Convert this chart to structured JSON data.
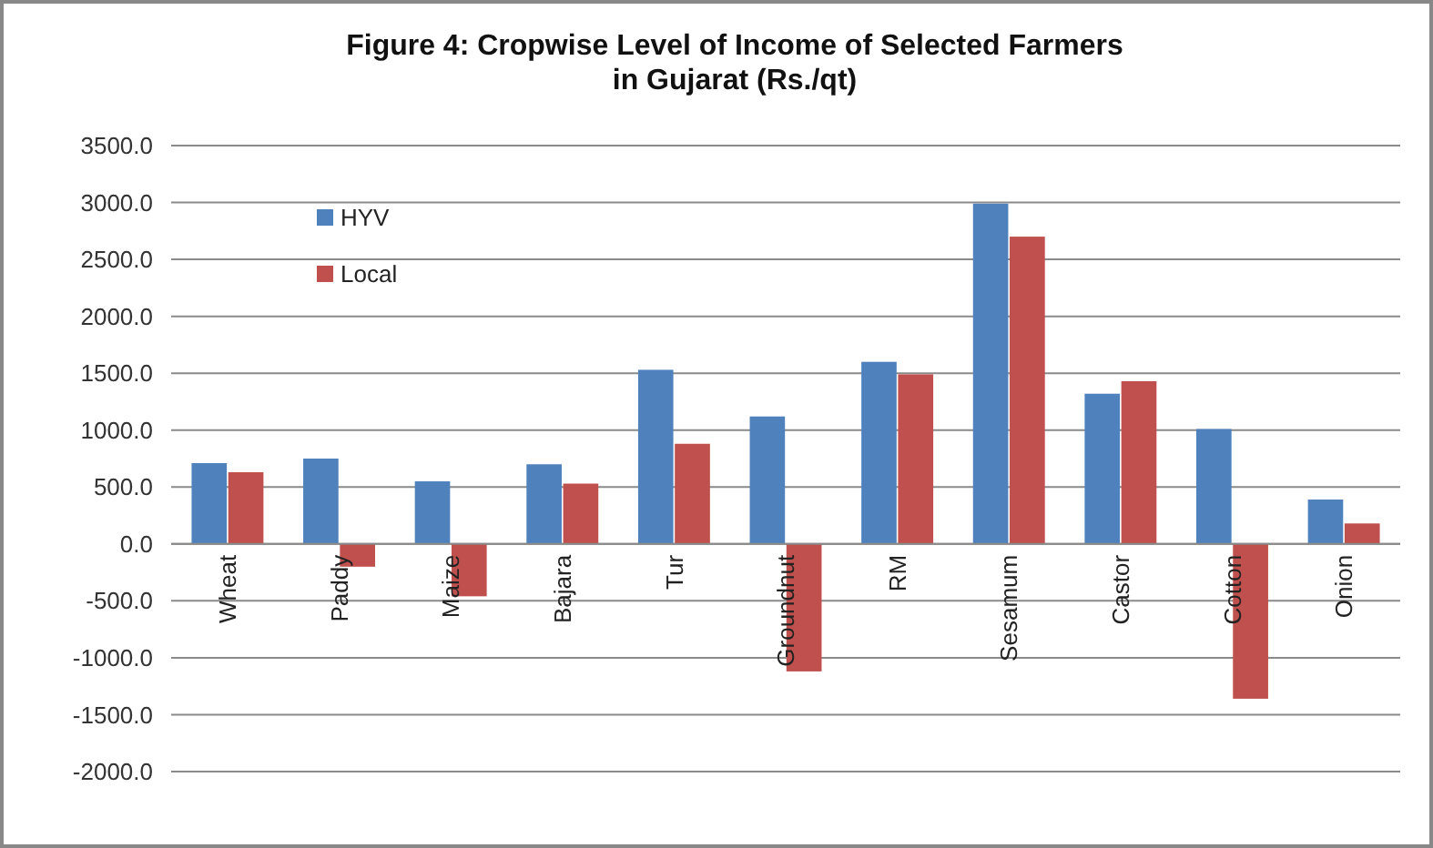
{
  "chart_data": {
    "type": "bar",
    "title": "Figure 4: Cropwise Level of Income of Selected Farmers in Gujarat (Rs./qt)",
    "categories": [
      "Wheat",
      "Paddy",
      "Maize",
      "Bajara",
      "Tur",
      "Groundnut",
      "RM",
      "Sesamum",
      "Castor",
      "Cotton",
      "Onion"
    ],
    "series": [
      {
        "name": "HYV",
        "color": "#4f81bd",
        "values": [
          710,
          750,
          550,
          700,
          1530,
          1120,
          1600,
          2990,
          1320,
          1010,
          390
        ]
      },
      {
        "name": "Local",
        "color": "#c0504d",
        "values": [
          630,
          -200,
          -460,
          530,
          880,
          -1120,
          1490,
          2700,
          1430,
          -1360,
          180
        ]
      }
    ],
    "ylim": [
      -2000,
      3500
    ],
    "yticks": [
      {
        "value": -2000,
        "label": "-2000.0"
      },
      {
        "value": -1500,
        "label": "-1500.0"
      },
      {
        "value": -1000,
        "label": "-1000.0"
      },
      {
        "value": -500,
        "label": "-500.0"
      },
      {
        "value": 0,
        "label": "0.0"
      },
      {
        "value": 500,
        "label": "500.0"
      },
      {
        "value": 1000,
        "label": "1000.0"
      },
      {
        "value": 1500,
        "label": "1500.0"
      },
      {
        "value": 2000,
        "label": "2000.0"
      },
      {
        "value": 2500,
        "label": "2500.0"
      },
      {
        "value": 3000,
        "label": "3000.0"
      },
      {
        "value": 3500,
        "label": "3500.0"
      }
    ],
    "grid": "y",
    "legend": "top left"
  }
}
